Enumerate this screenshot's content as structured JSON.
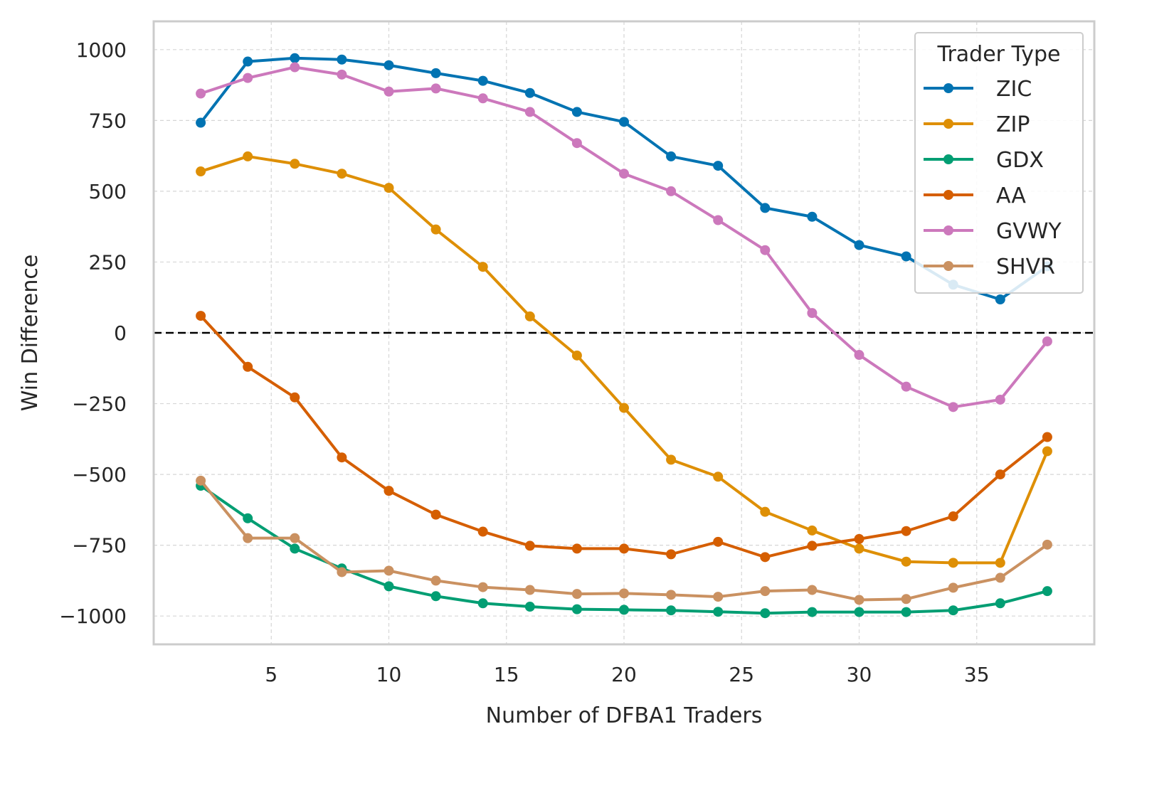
{
  "chart_data": {
    "type": "line",
    "xlabel": "Number of DFBA1 Traders",
    "ylabel": "Win Difference",
    "xlim": [
      0,
      40
    ],
    "ylim": [
      -1100,
      1100
    ],
    "xticks": [
      5,
      10,
      15,
      20,
      25,
      30,
      35
    ],
    "yticks": [
      1000,
      750,
      500,
      250,
      0,
      -250,
      -500,
      -750,
      -1000
    ],
    "ytick_labels": [
      "1000",
      "750",
      "500",
      "250",
      "0",
      "−250",
      "−500",
      "−750",
      "−1000"
    ],
    "grid": true,
    "reference_line": 0,
    "legend": {
      "title": "Trader Type",
      "position": "top-right"
    },
    "x": [
      2,
      4,
      6,
      8,
      10,
      12,
      14,
      16,
      18,
      20,
      22,
      24,
      26,
      28,
      30,
      32,
      34,
      36,
      38
    ],
    "series": [
      {
        "name": "ZIC",
        "color": "#0173b2",
        "values": [
          742,
          958,
          970,
          965,
          945,
          917,
          890,
          847,
          780,
          745,
          623,
          590,
          441,
          410,
          310,
          270,
          170,
          118,
          235
        ]
      },
      {
        "name": "ZIP",
        "color": "#de8f05",
        "values": [
          570,
          623,
          597,
          562,
          512,
          365,
          233,
          58,
          -80,
          -265,
          -448,
          -508,
          -632,
          -698,
          -762,
          -808,
          -812,
          -812,
          -418
        ]
      },
      {
        "name": "GDX",
        "color": "#029e73",
        "values": [
          -540,
          -655,
          -762,
          -832,
          -895,
          -930,
          -955,
          -967,
          -976,
          -978,
          -980,
          -985,
          -990,
          -986,
          -986,
          -986,
          -980,
          -955,
          -912
        ]
      },
      {
        "name": "AA",
        "color": "#d55e00",
        "values": [
          60,
          -120,
          -228,
          -440,
          -558,
          -642,
          -702,
          -752,
          -762,
          -762,
          -782,
          -738,
          -792,
          -752,
          -728,
          -700,
          -648,
          -500,
          -368
        ]
      },
      {
        "name": "GVWY",
        "color": "#cc78bc",
        "values": [
          845,
          900,
          938,
          912,
          852,
          863,
          828,
          780,
          670,
          562,
          500,
          398,
          292,
          70,
          -78,
          -190,
          -262,
          -236,
          -30
        ]
      },
      {
        "name": "SHVR",
        "color": "#ca9161",
        "values": [
          -522,
          -725,
          -725,
          -845,
          -840,
          -875,
          -898,
          -908,
          -922,
          -920,
          -925,
          -932,
          -912,
          -908,
          -943,
          -940,
          -900,
          -865,
          -748
        ]
      }
    ]
  }
}
